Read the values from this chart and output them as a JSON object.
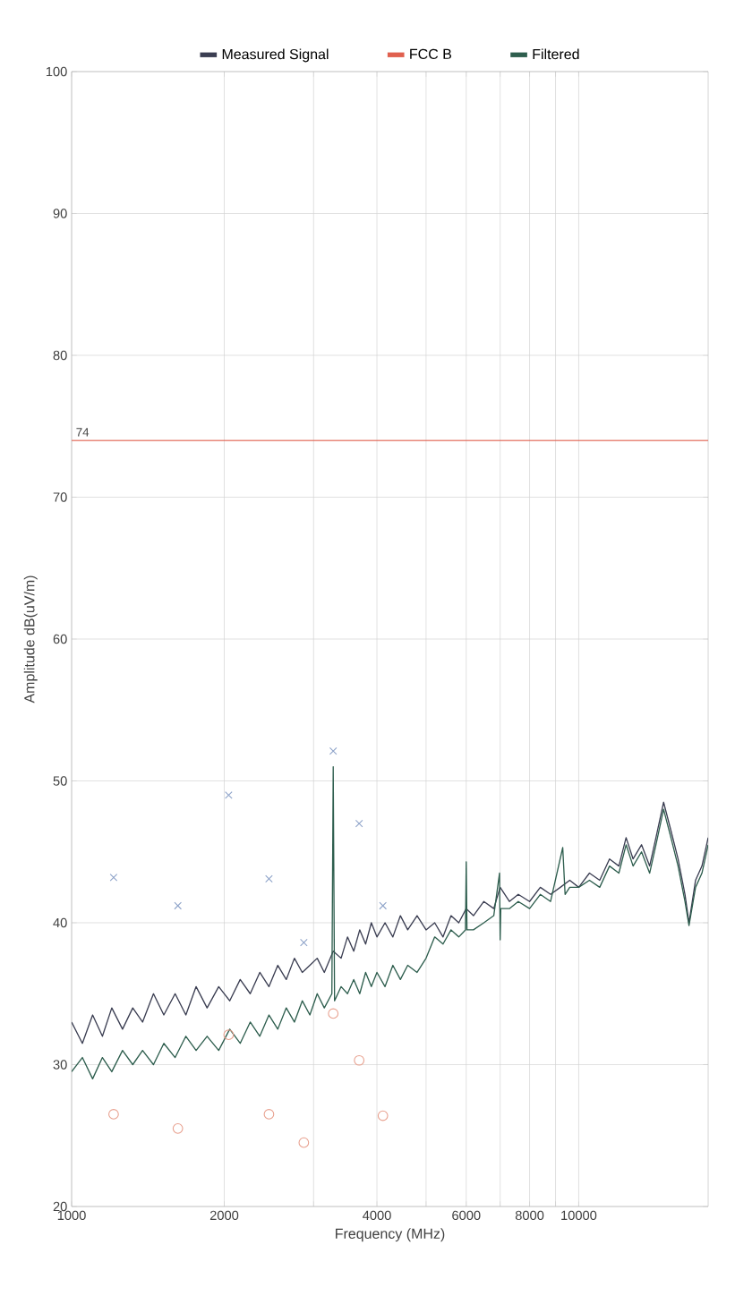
{
  "chart_data": {
    "type": "line",
    "xlabel": "Frequency (MHz)",
    "ylabel": "Amplitude dB(uV/m)",
    "log": "x",
    "grid": true,
    "legend": "top",
    "xlim": [
      1000,
      18000
    ],
    "ylim": [
      20,
      100
    ],
    "xticks": [
      1000,
      2000,
      {
        "value": 3000,
        "label": null
      },
      4000,
      {
        "value": 5000,
        "label": null
      },
      6000,
      {
        "value": 7000,
        "label": null
      },
      8000,
      {
        "value": 9000,
        "label": null
      },
      10000
    ],
    "yticks": [
      20,
      30,
      40,
      50,
      60,
      70,
      80,
      90,
      100
    ],
    "annotations": [
      {
        "text": "74",
        "x": 1000,
        "y": 74
      }
    ],
    "series": [
      {
        "name": "Measured Signal",
        "color": "#3b3e52",
        "x": [
          1000,
          1050,
          1100,
          1150,
          1200,
          1260,
          1320,
          1380,
          1450,
          1520,
          1600,
          1680,
          1760,
          1850,
          1950,
          2050,
          2150,
          2250,
          2350,
          2450,
          2550,
          2650,
          2750,
          2850,
          2950,
          3050,
          3150,
          3280,
          3400,
          3500,
          3600,
          3700,
          3800,
          3900,
          4000,
          4150,
          4300,
          4450,
          4600,
          4800,
          5000,
          5200,
          5400,
          5600,
          5800,
          6000,
          6200,
          6500,
          6800,
          7000,
          7300,
          7600,
          8000,
          8400,
          8800,
          9200,
          9600,
          10000,
          10500,
          11000,
          11500,
          12000,
          12400,
          12800,
          13300,
          13800,
          14200,
          14700,
          15200,
          15700,
          16200,
          16500,
          17000,
          17500,
          18000
        ],
        "values": [
          33,
          31.5,
          33.5,
          32,
          34,
          32.5,
          34,
          33,
          35,
          33.5,
          35,
          33.5,
          35.5,
          34,
          35.5,
          34.5,
          36,
          35,
          36.5,
          35.5,
          37,
          36,
          37.5,
          36.5,
          37,
          37.5,
          36.5,
          38,
          37.5,
          39,
          38,
          39.5,
          38.5,
          40,
          39,
          40,
          39,
          40.5,
          39.5,
          40.5,
          39.5,
          40,
          39,
          40.5,
          40,
          41,
          40.5,
          41.5,
          41,
          42.5,
          41.5,
          42,
          41.5,
          42.5,
          42,
          42.5,
          43,
          42.5,
          43.5,
          43,
          44.5,
          44,
          46,
          44.5,
          45.5,
          44,
          46,
          48.5,
          46.5,
          44.5,
          42,
          40,
          43,
          44,
          46
        ]
      },
      {
        "name": "FCC B",
        "color": "#e0604f",
        "x": [
          1000,
          18000
        ],
        "values": [
          74,
          74
        ]
      },
      {
        "name": "Filtered",
        "color": "#2e5e4e",
        "x": [
          1000,
          1050,
          1100,
          1150,
          1200,
          1260,
          1320,
          1380,
          1450,
          1520,
          1600,
          1680,
          1760,
          1850,
          1950,
          2050,
          2150,
          2250,
          2350,
          2450,
          2550,
          2650,
          2750,
          2850,
          2950,
          3050,
          3150,
          3260,
          3280,
          3300,
          3400,
          3500,
          3600,
          3700,
          3800,
          3900,
          4000,
          4150,
          4300,
          4450,
          4600,
          4800,
          5000,
          5200,
          5400,
          5600,
          5800,
          5980,
          6000,
          6020,
          6200,
          6500,
          6800,
          6980,
          7000,
          7020,
          7300,
          7600,
          8000,
          8400,
          8800,
          9300,
          9400,
          9600,
          10000,
          10500,
          11000,
          11500,
          12000,
          12400,
          12800,
          13300,
          13800,
          14200,
          14700,
          15200,
          15700,
          16200,
          16500,
          17000,
          17500,
          18000
        ],
        "values": [
          29.5,
          30.5,
          29,
          30.5,
          29.5,
          31,
          30,
          31,
          30,
          31.5,
          30.5,
          32,
          31,
          32,
          31,
          32.5,
          31.5,
          33,
          32,
          33.5,
          32.5,
          34,
          33,
          34.5,
          33.5,
          35,
          34,
          35,
          51,
          34.5,
          35.5,
          35,
          36,
          35,
          36.5,
          35.5,
          36.5,
          35.5,
          37,
          36,
          37,
          36.5,
          37.5,
          39,
          38.5,
          39.5,
          39,
          39.5,
          44.3,
          39.5,
          39.5,
          40,
          40.5,
          43.5,
          38.8,
          41,
          41,
          41.5,
          41,
          42,
          41.5,
          45.3,
          42,
          42.5,
          42.5,
          43,
          42.5,
          44,
          43.5,
          45.5,
          44,
          45,
          43.5,
          45.5,
          48,
          46,
          44,
          41.5,
          39.8,
          42.5,
          43.5,
          45.5
        ]
      },
      {
        "color": "#8ea3c9",
        "type": "scatter",
        "marker": "cross",
        "x": [
          1210,
          1620,
          2040,
          2450,
          2870,
          3280,
          3690,
          4110
        ],
        "values": [
          43.2,
          41.2,
          49.0,
          43.1,
          38.6,
          52.1,
          47.0,
          41.2
        ]
      },
      {
        "color": "#e8a08e",
        "type": "scatter",
        "marker": "circle",
        "x": [
          1210,
          1620,
          2040,
          2450,
          2870,
          3280,
          3690,
          4110
        ],
        "values": [
          26.5,
          25.5,
          32.1,
          26.5,
          24.5,
          33.6,
          30.3,
          26.4
        ]
      }
    ]
  }
}
